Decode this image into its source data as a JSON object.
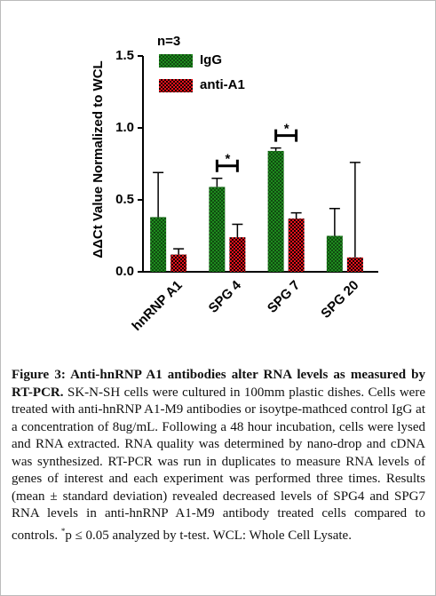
{
  "chart_data": {
    "type": "bar",
    "ylabel": "ΔΔCt Value Normalized to WCL",
    "annotation": "n=3",
    "categories": [
      "hnRNP A1",
      "SPG 4",
      "SPG 7",
      "SPG 20"
    ],
    "series": [
      {
        "name": "IgG",
        "color": "#1e8a1e",
        "values": [
          0.38,
          0.59,
          0.84,
          0.25
        ],
        "errors": [
          0.31,
          0.06,
          0.02,
          0.19
        ]
      },
      {
        "name": "anti-A1",
        "color": "#e8101a",
        "values": [
          0.12,
          0.24,
          0.37,
          0.1
        ],
        "errors": [
          0.04,
          0.09,
          0.04,
          0.66
        ]
      }
    ],
    "significance": [
      {
        "category": "SPG 4",
        "label": "*"
      },
      {
        "category": "SPG 7",
        "label": "*"
      }
    ],
    "ylim": [
      0,
      1.5
    ],
    "yticks": [
      {
        "value": 0,
        "label": "0.0"
      },
      0.5,
      {
        "value": 1,
        "label": "1.0"
      },
      {
        "value": 1.5,
        "label": "1.5"
      }
    ],
    "legend": "top-left"
  },
  "caption": {
    "title": "Figure 3: Anti-hnRNP A1 antibodies alter RNA levels as measured by RT-PCR.",
    "body": "SK-N-SH cells were cultured in 100mm plastic dishes. Cells were treated with anti-hnRNP A1-M9 antibodies or isoytpe-mathced control IgG at a concentration of 8ug/mL. Following a 48 hour incubation, cells were lysed and RNA extracted. RNA quality was determined by nano-drop and cDNA was synthesized. RT-PCR was run in duplicates to measure RNA levels of genes of interest and each experiment was performed three times. Results (mean ± standard deviation) revealed decreased levels of SPG4 and SPG7 RNA levels in anti-hnRNP A1-M9 antibody treated cells compared to controls.",
    "footnote_mark": "*",
    "footnote": "p ≤ 0.05 analyzed by t-test. WCL: Whole Cell Lysate."
  }
}
